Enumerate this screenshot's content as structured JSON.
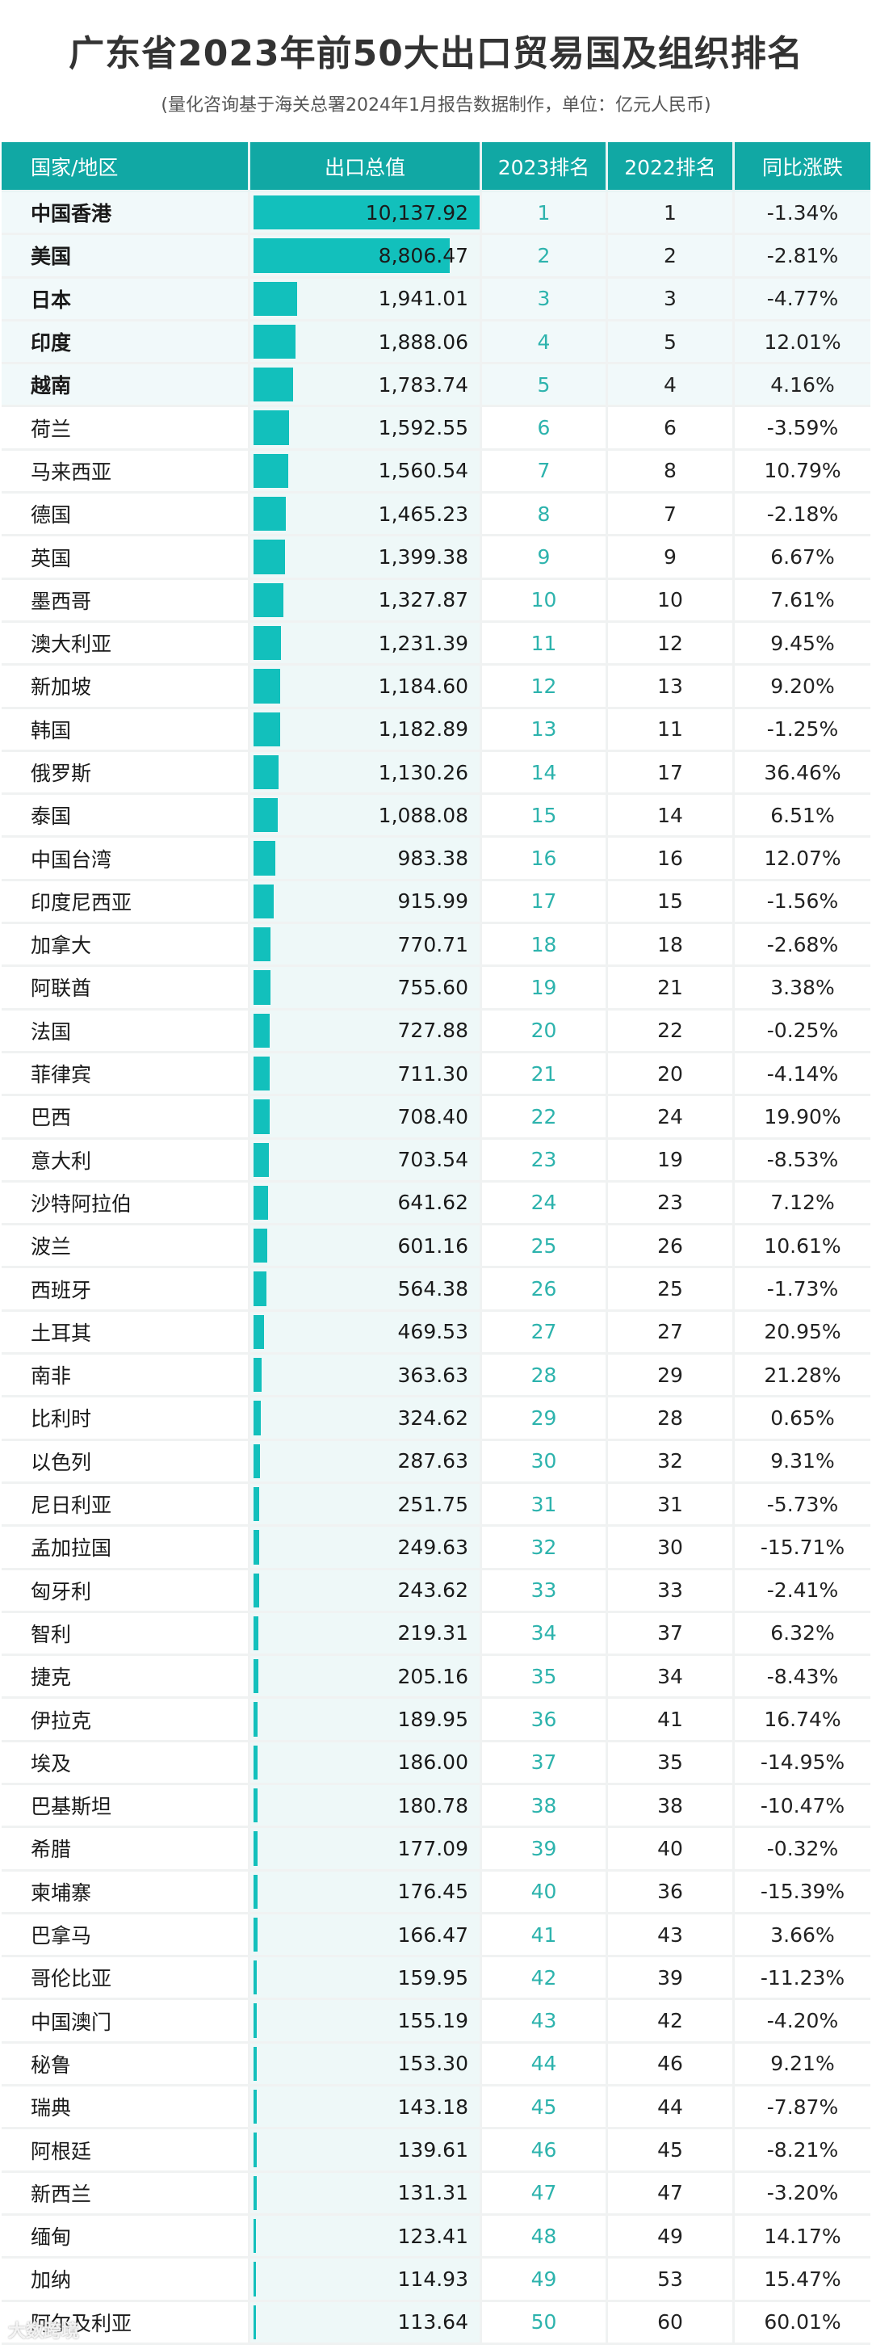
{
  "header": {
    "title": "广东省2023年前50大出口贸易国及组织排名",
    "subtitle": "(量化咨询基于海关总署2024年1月报告数据制作，单位：亿元人民币)"
  },
  "columns": [
    "国家/地区",
    "出口总值",
    "2023排名",
    "2022排名",
    "同比涨跌"
  ],
  "colors": {
    "header_bg": "#11a8a4",
    "bar": "#12c0bc",
    "rank_text": "#2db3ad",
    "top_row_bg": "#f1f9fa"
  },
  "watermark": "大数跨境",
  "chart_data": {
    "type": "table",
    "title": "广东省2023年前50大出口贸易国及组织排名",
    "subtitle": "(量化咨询基于海关总署2024年1月报告数据制作，单位：亿元人民币)",
    "unit": "亿元人民币",
    "columns": [
      "国家/地区",
      "出口总值",
      "2023排名",
      "2022排名",
      "同比涨跌"
    ],
    "bar_column": "出口总值",
    "bar_max": 10137.92,
    "rows": [
      {
        "name": "中国香港",
        "value": 10137.92,
        "value_label": "10,137.92",
        "rank2023": 1,
        "rank2022": 1,
        "change": "-1.34%"
      },
      {
        "name": "美国",
        "value": 8806.47,
        "value_label": "8,806.47",
        "rank2023": 2,
        "rank2022": 2,
        "change": "-2.81%"
      },
      {
        "name": "日本",
        "value": 1941.01,
        "value_label": "1,941.01",
        "rank2023": 3,
        "rank2022": 3,
        "change": "-4.77%"
      },
      {
        "name": "印度",
        "value": 1888.06,
        "value_label": "1,888.06",
        "rank2023": 4,
        "rank2022": 5,
        "change": "12.01%"
      },
      {
        "name": "越南",
        "value": 1783.74,
        "value_label": "1,783.74",
        "rank2023": 5,
        "rank2022": 4,
        "change": "4.16%"
      },
      {
        "name": "荷兰",
        "value": 1592.55,
        "value_label": "1,592.55",
        "rank2023": 6,
        "rank2022": 6,
        "change": "-3.59%"
      },
      {
        "name": "马来西亚",
        "value": 1560.54,
        "value_label": "1,560.54",
        "rank2023": 7,
        "rank2022": 8,
        "change": "10.79%"
      },
      {
        "name": "德国",
        "value": 1465.23,
        "value_label": "1,465.23",
        "rank2023": 8,
        "rank2022": 7,
        "change": "-2.18%"
      },
      {
        "name": "英国",
        "value": 1399.38,
        "value_label": "1,399.38",
        "rank2023": 9,
        "rank2022": 9,
        "change": "6.67%"
      },
      {
        "name": "墨西哥",
        "value": 1327.87,
        "value_label": "1,327.87",
        "rank2023": 10,
        "rank2022": 10,
        "change": "7.61%"
      },
      {
        "name": "澳大利亚",
        "value": 1231.39,
        "value_label": "1,231.39",
        "rank2023": 11,
        "rank2022": 12,
        "change": "9.45%"
      },
      {
        "name": "新加坡",
        "value": 1184.6,
        "value_label": "1,184.60",
        "rank2023": 12,
        "rank2022": 13,
        "change": "9.20%"
      },
      {
        "name": "韩国",
        "value": 1182.89,
        "value_label": "1,182.89",
        "rank2023": 13,
        "rank2022": 11,
        "change": "-1.25%"
      },
      {
        "name": "俄罗斯",
        "value": 1130.26,
        "value_label": "1,130.26",
        "rank2023": 14,
        "rank2022": 17,
        "change": "36.46%"
      },
      {
        "name": "泰国",
        "value": 1088.08,
        "value_label": "1,088.08",
        "rank2023": 15,
        "rank2022": 14,
        "change": "6.51%"
      },
      {
        "name": "中国台湾",
        "value": 983.38,
        "value_label": "983.38",
        "rank2023": 16,
        "rank2022": 16,
        "change": "12.07%"
      },
      {
        "name": "印度尼西亚",
        "value": 915.99,
        "value_label": "915.99",
        "rank2023": 17,
        "rank2022": 15,
        "change": "-1.56%"
      },
      {
        "name": "加拿大",
        "value": 770.71,
        "value_label": "770.71",
        "rank2023": 18,
        "rank2022": 18,
        "change": "-2.68%"
      },
      {
        "name": "阿联酋",
        "value": 755.6,
        "value_label": "755.60",
        "rank2023": 19,
        "rank2022": 21,
        "change": "3.38%"
      },
      {
        "name": "法国",
        "value": 727.88,
        "value_label": "727.88",
        "rank2023": 20,
        "rank2022": 22,
        "change": "-0.25%"
      },
      {
        "name": "菲律宾",
        "value": 711.3,
        "value_label": "711.30",
        "rank2023": 21,
        "rank2022": 20,
        "change": "-4.14%"
      },
      {
        "name": "巴西",
        "value": 708.4,
        "value_label": "708.40",
        "rank2023": 22,
        "rank2022": 24,
        "change": "19.90%"
      },
      {
        "name": "意大利",
        "value": 703.54,
        "value_label": "703.54",
        "rank2023": 23,
        "rank2022": 19,
        "change": "-8.53%"
      },
      {
        "name": "沙特阿拉伯",
        "value": 641.62,
        "value_label": "641.62",
        "rank2023": 24,
        "rank2022": 23,
        "change": "7.12%"
      },
      {
        "name": "波兰",
        "value": 601.16,
        "value_label": "601.16",
        "rank2023": 25,
        "rank2022": 26,
        "change": "10.61%"
      },
      {
        "name": "西班牙",
        "value": 564.38,
        "value_label": "564.38",
        "rank2023": 26,
        "rank2022": 25,
        "change": "-1.73%"
      },
      {
        "name": "土耳其",
        "value": 469.53,
        "value_label": "469.53",
        "rank2023": 27,
        "rank2022": 27,
        "change": "20.95%"
      },
      {
        "name": "南非",
        "value": 363.63,
        "value_label": "363.63",
        "rank2023": 28,
        "rank2022": 29,
        "change": "21.28%"
      },
      {
        "name": "比利时",
        "value": 324.62,
        "value_label": "324.62",
        "rank2023": 29,
        "rank2022": 28,
        "change": "0.65%"
      },
      {
        "name": "以色列",
        "value": 287.63,
        "value_label": "287.63",
        "rank2023": 30,
        "rank2022": 32,
        "change": "9.31%"
      },
      {
        "name": "尼日利亚",
        "value": 251.75,
        "value_label": "251.75",
        "rank2023": 31,
        "rank2022": 31,
        "change": "-5.73%"
      },
      {
        "name": "孟加拉国",
        "value": 249.63,
        "value_label": "249.63",
        "rank2023": 32,
        "rank2022": 30,
        "change": "-15.71%"
      },
      {
        "name": "匈牙利",
        "value": 243.62,
        "value_label": "243.62",
        "rank2023": 33,
        "rank2022": 33,
        "change": "-2.41%"
      },
      {
        "name": "智利",
        "value": 219.31,
        "value_label": "219.31",
        "rank2023": 34,
        "rank2022": 37,
        "change": "6.32%"
      },
      {
        "name": "捷克",
        "value": 205.16,
        "value_label": "205.16",
        "rank2023": 35,
        "rank2022": 34,
        "change": "-8.43%"
      },
      {
        "name": "伊拉克",
        "value": 189.95,
        "value_label": "189.95",
        "rank2023": 36,
        "rank2022": 41,
        "change": "16.74%"
      },
      {
        "name": "埃及",
        "value": 186.0,
        "value_label": "186.00",
        "rank2023": 37,
        "rank2022": 35,
        "change": "-14.95%"
      },
      {
        "name": "巴基斯坦",
        "value": 180.78,
        "value_label": "180.78",
        "rank2023": 38,
        "rank2022": 38,
        "change": "-10.47%"
      },
      {
        "name": "希腊",
        "value": 177.09,
        "value_label": "177.09",
        "rank2023": 39,
        "rank2022": 40,
        "change": "-0.32%"
      },
      {
        "name": "柬埔寨",
        "value": 176.45,
        "value_label": "176.45",
        "rank2023": 40,
        "rank2022": 36,
        "change": "-15.39%"
      },
      {
        "name": "巴拿马",
        "value": 166.47,
        "value_label": "166.47",
        "rank2023": 41,
        "rank2022": 43,
        "change": "3.66%"
      },
      {
        "name": "哥伦比亚",
        "value": 159.95,
        "value_label": "159.95",
        "rank2023": 42,
        "rank2022": 39,
        "change": "-11.23%"
      },
      {
        "name": "中国澳门",
        "value": 155.19,
        "value_label": "155.19",
        "rank2023": 43,
        "rank2022": 42,
        "change": "-4.20%"
      },
      {
        "name": "秘鲁",
        "value": 153.3,
        "value_label": "153.30",
        "rank2023": 44,
        "rank2022": 46,
        "change": "9.21%"
      },
      {
        "name": "瑞典",
        "value": 143.18,
        "value_label": "143.18",
        "rank2023": 45,
        "rank2022": 44,
        "change": "-7.87%"
      },
      {
        "name": "阿根廷",
        "value": 139.61,
        "value_label": "139.61",
        "rank2023": 46,
        "rank2022": 45,
        "change": "-8.21%"
      },
      {
        "name": "新西兰",
        "value": 131.31,
        "value_label": "131.31",
        "rank2023": 47,
        "rank2022": 47,
        "change": "-3.20%"
      },
      {
        "name": "缅甸",
        "value": 123.41,
        "value_label": "123.41",
        "rank2023": 48,
        "rank2022": 49,
        "change": "14.17%"
      },
      {
        "name": "加纳",
        "value": 114.93,
        "value_label": "114.93",
        "rank2023": 49,
        "rank2022": 53,
        "change": "15.47%"
      },
      {
        "name": "阿尔及利亚",
        "value": 113.64,
        "value_label": "113.64",
        "rank2023": 50,
        "rank2022": 60,
        "change": "60.01%"
      }
    ]
  }
}
